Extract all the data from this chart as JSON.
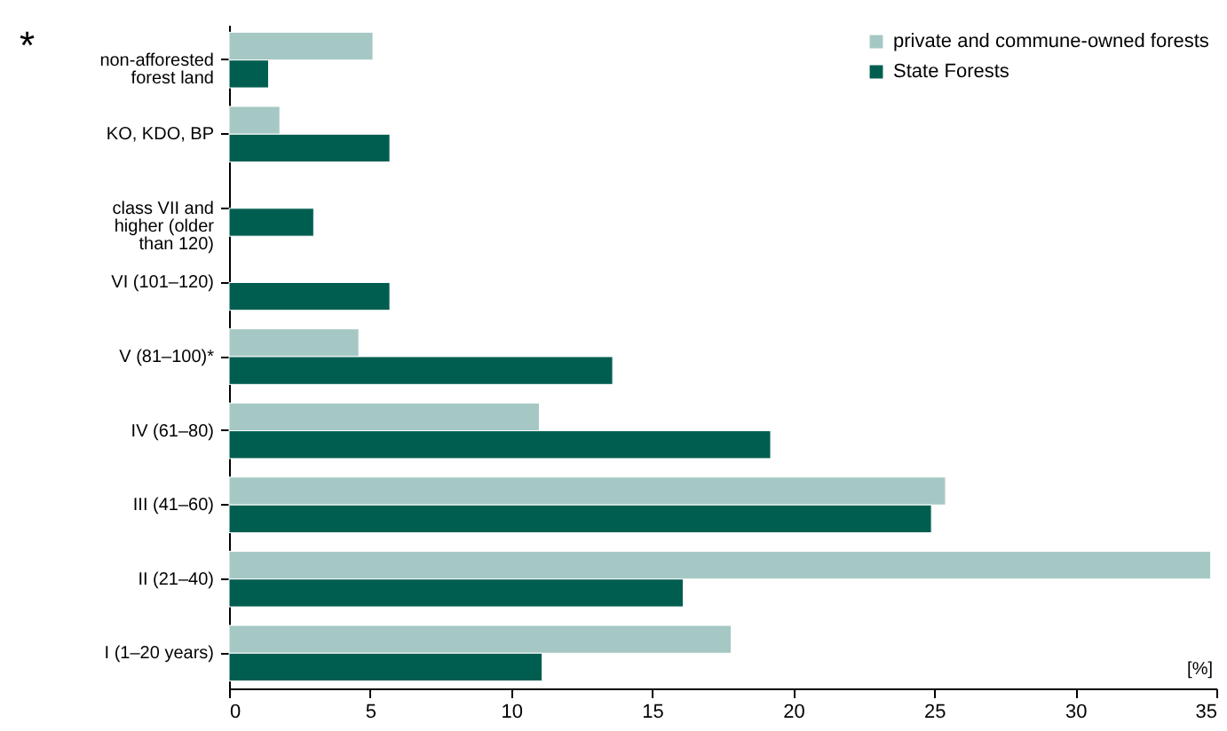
{
  "chart_data": {
    "type": "bar",
    "orientation": "horizontal",
    "categories": [
      "non-afforested forest land",
      "KO, KDO, BP",
      "class VII and higher (older than 120)",
      "VI (101–120)",
      "V (81–100)*",
      "IV (61–80)",
      "III (41–60)",
      "II (21–40)",
      "I (1–20 years)"
    ],
    "series": [
      {
        "name": "private and commune-owned forests",
        "color": "#a6c8c4",
        "values": [
          5.1,
          1.8,
          null,
          null,
          4.6,
          11.0,
          25.4,
          34.8,
          17.8
        ]
      },
      {
        "name": "State Forests",
        "color": "#005e50",
        "values": [
          1.4,
          5.7,
          3.0,
          5.7,
          13.6,
          19.2,
          24.9,
          16.1,
          11.1
        ]
      }
    ],
    "xlim": [
      0,
      35
    ],
    "xticks": [
      0,
      5,
      10,
      15,
      20,
      25,
      30,
      35
    ],
    "grid": false,
    "legend": "top right",
    "annotations": [
      "*",
      "[%]"
    ]
  }
}
